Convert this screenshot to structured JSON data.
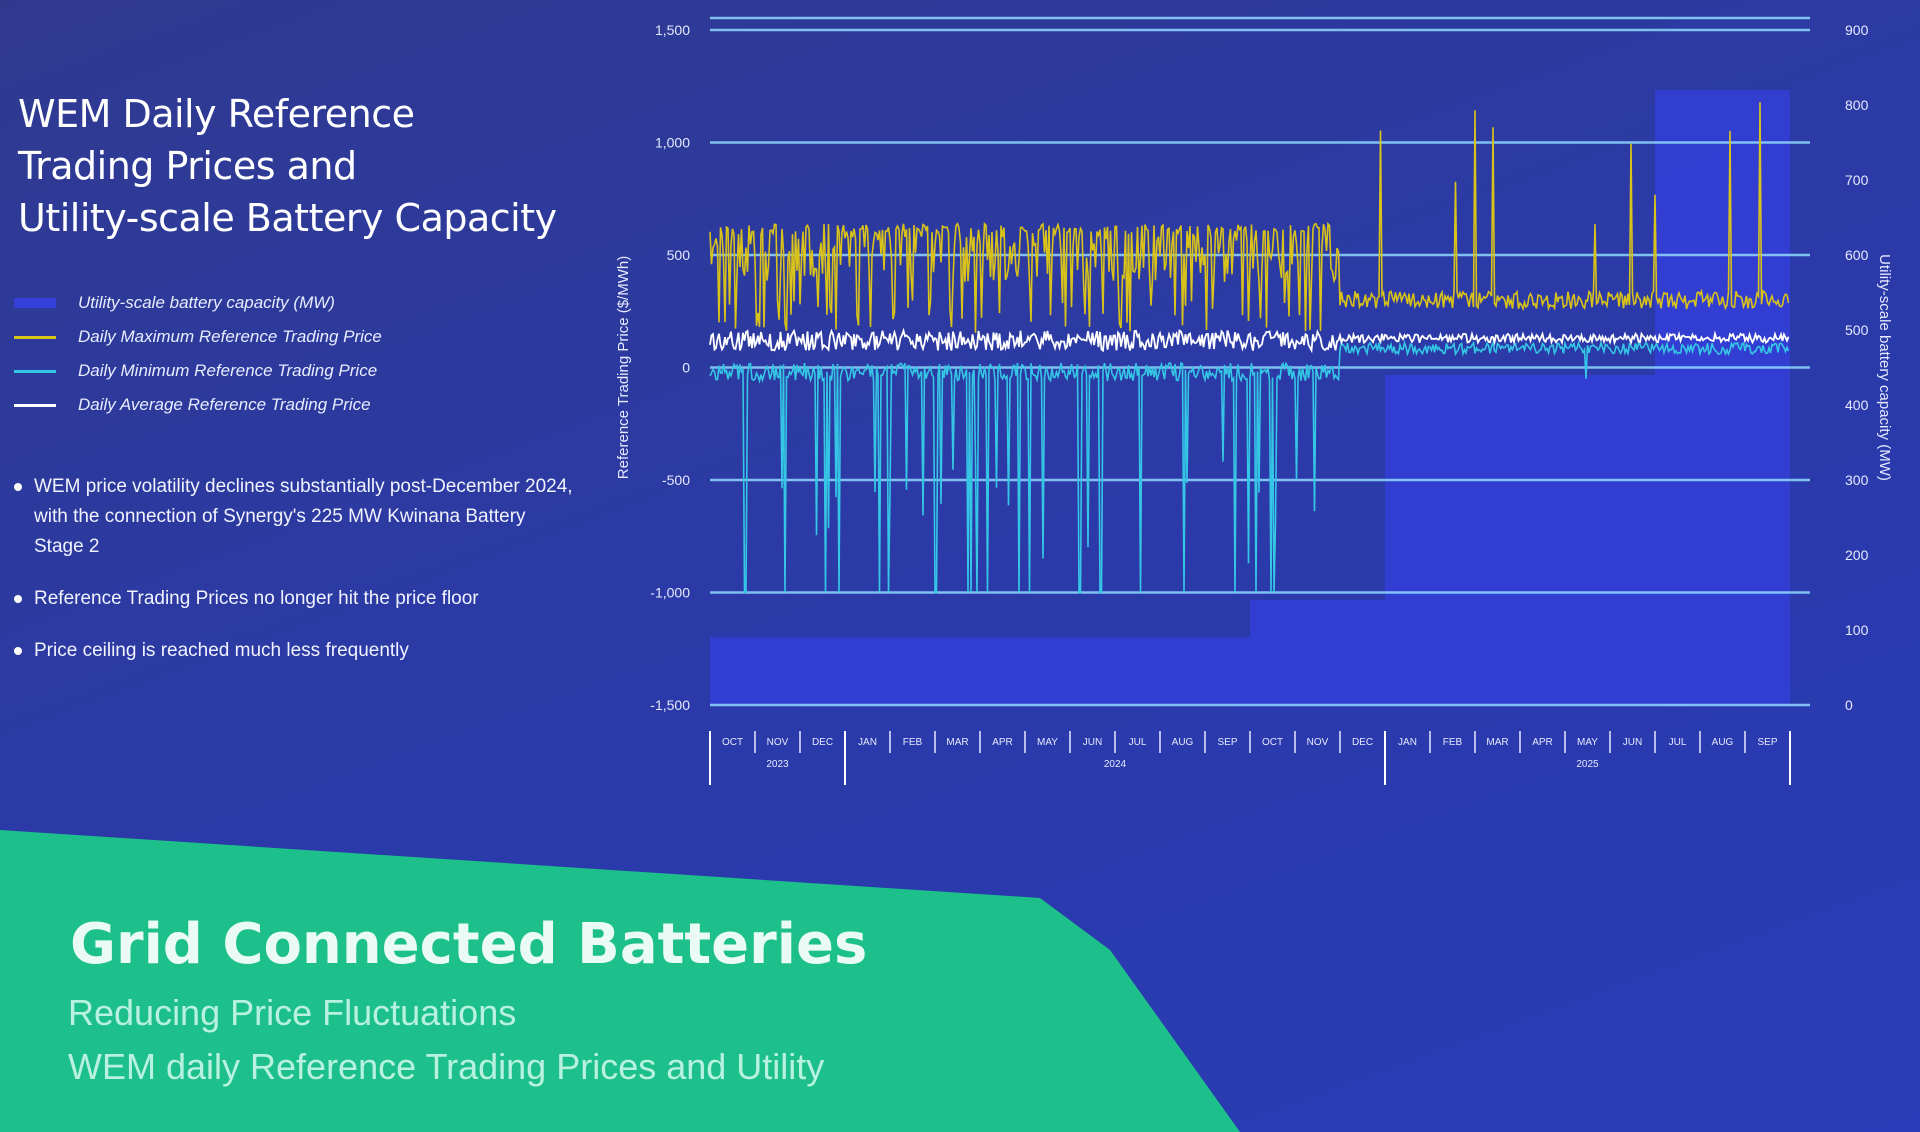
{
  "panel": {
    "title_lines": [
      "WEM Daily Reference",
      "Trading Prices and",
      "Utility-scale Battery Capacity"
    ]
  },
  "legend": [
    {
      "label": "Utility-scale battery capacity (MW)",
      "type": "area",
      "color": "#3440d8"
    },
    {
      "label": "Daily Maximum Reference Trading Price",
      "type": "line",
      "color": "#d9c21a"
    },
    {
      "label": "Daily Minimum Reference Trading Price",
      "type": "line",
      "color": "#35c6e6"
    },
    {
      "label": "Daily Average Reference Trading Price",
      "type": "line",
      "color": "#ffffff"
    }
  ],
  "bullets": [
    "WEM price volatility declines substantially post-December 2024, with the connection of Synergy's 225 MW Kwinana Battery Stage 2",
    "Reference Trading Prices no longer hit the price floor",
    "Price ceiling is reached much less frequently"
  ],
  "banner": {
    "title": "Grid Connected Batteries",
    "subtitle_1": "Reducing Price Fluctuations",
    "subtitle_2": "WEM daily Reference Trading Prices and Utility"
  },
  "chart_data": {
    "type": "line",
    "ylabel": "Reference Trading Price ($/MWh)",
    "y2label": "Utility-scale battery capacity (MW)",
    "ylim": [
      -1500,
      1500
    ],
    "y_ticks": [
      1500,
      1000,
      500,
      0,
      -500,
      -1000,
      -1500
    ],
    "y_tick_labels": [
      "1,500",
      "1,000",
      "500",
      "0",
      "-500",
      "-1,000",
      "-1,500"
    ],
    "y2lim": [
      0,
      900
    ],
    "y2_ticks": [
      900,
      800,
      700,
      600,
      500,
      400,
      300,
      200,
      100,
      0
    ],
    "months": [
      "OCT",
      "NOV",
      "DEC",
      "JAN",
      "FEB",
      "MAR",
      "APR",
      "MAY",
      "JUN",
      "JUL",
      "AUG",
      "SEP",
      "OCT",
      "NOV",
      "DEC",
      "JAN",
      "FEB",
      "MAR",
      "APR",
      "MAY",
      "JUN",
      "JUL",
      "AUG",
      "SEP"
    ],
    "years": [
      {
        "label": "2023",
        "start_index": 0,
        "end_index": 2
      },
      {
        "label": "2024",
        "start_index": 3,
        "end_index": 14
      },
      {
        "label": "2025",
        "start_index": 15,
        "end_index": 23
      }
    ],
    "grid": true,
    "battery_capacity_steps": [
      {
        "from_month_index": 0,
        "to_month_index": 12,
        "mw": 90
      },
      {
        "from_month_index": 12,
        "to_month_index": 15,
        "mw": 140
      },
      {
        "from_month_index": 15,
        "to_month_index": 21,
        "mw": 440
      },
      {
        "from_month_index": 21,
        "to_month_index": 24,
        "mw": 820
      }
    ],
    "series_levels": {
      "max_typical_before_dec_2024": 620,
      "max_typical_after_dec_2024": 300,
      "max_spike_peak": 1180,
      "avg_typical": 120,
      "min_typical": 20,
      "min_floor": -1000
    }
  }
}
